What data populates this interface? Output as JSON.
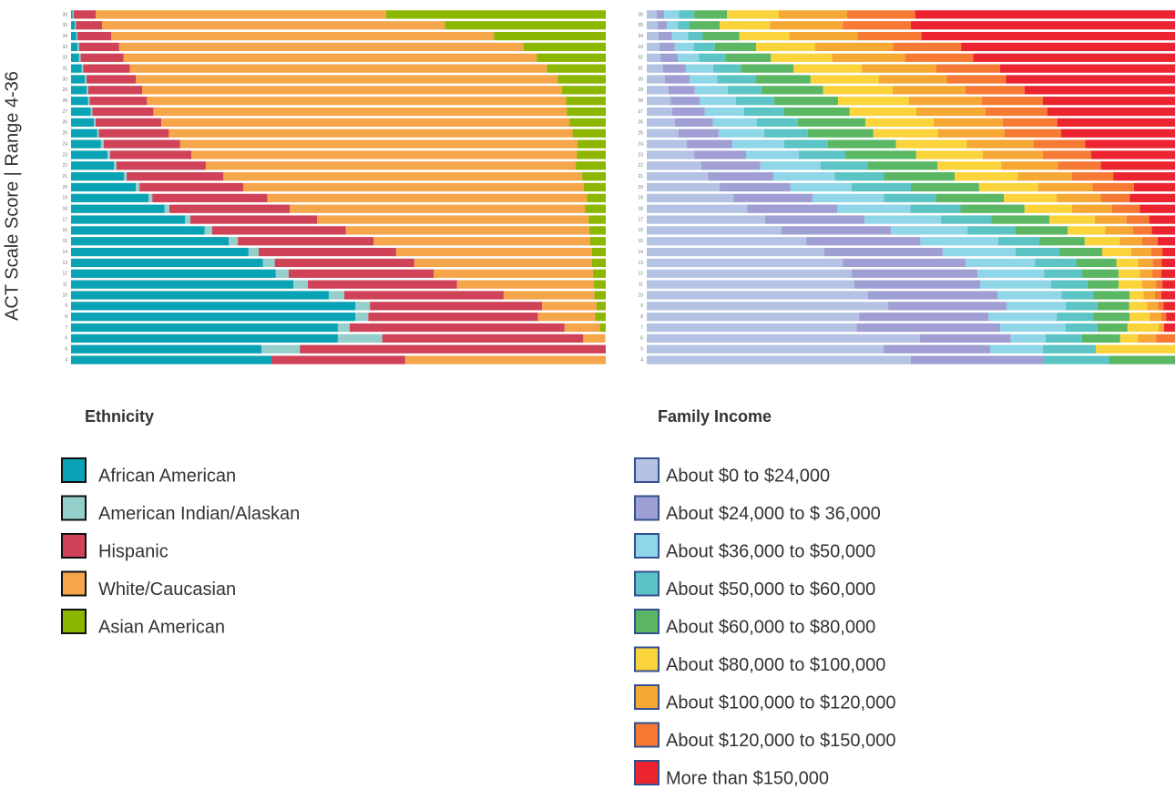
{
  "chart_data": [
    {
      "type": "bar",
      "orientation": "horizontal",
      "stacked": true,
      "title": "Ethnicity",
      "y_label": "ACT Scale Score | Range 4-36",
      "categories": [
        "36",
        "35",
        "34",
        "33",
        "32",
        "31",
        "30",
        "29",
        "28",
        "27",
        "26",
        "25",
        "24",
        "23",
        "22",
        "21",
        "20",
        "19",
        "18",
        "17",
        "16",
        "15",
        "14",
        "13",
        "12",
        "11",
        "10",
        "9",
        "8",
        "7",
        "6",
        "5",
        "4"
      ],
      "xlim": [
        0,
        100
      ],
      "legend_border": "#111",
      "series": [
        {
          "name": "African American",
          "color": "#0aa3b5",
          "values": [
            0.3,
            0.7,
            1.0,
            1.2,
            1.5,
            2.0,
            2.6,
            2.9,
            3.2,
            3.7,
            4.3,
            4.9,
            5.6,
            6.8,
            8.0,
            9.9,
            12.1,
            14.5,
            17.5,
            21.3,
            25.0,
            29.5,
            33.2,
            35.9,
            38.3,
            41.6,
            48.2,
            53.2,
            53.2,
            49.9,
            49.9,
            35.6,
            37.5
          ]
        },
        {
          "name": "American Indian/Alaskan",
          "color": "#95cfcc",
          "values": [
            0.2,
            0.2,
            0.2,
            0.3,
            0.3,
            0.3,
            0.3,
            0.3,
            0.3,
            0.3,
            0.3,
            0.3,
            0.5,
            0.5,
            0.5,
            0.5,
            0.7,
            0.7,
            0.9,
            1.0,
            1.4,
            1.7,
            1.9,
            2.2,
            2.4,
            2.7,
            2.9,
            2.7,
            2.4,
            2.2,
            8.3,
            7.2,
            0
          ]
        },
        {
          "name": "Hispanic",
          "color": "#cf4258",
          "values": [
            4.1,
            4.9,
            6.3,
            7.5,
            8.0,
            8.7,
            9.2,
            10.1,
            10.7,
            11.4,
            12.3,
            13.1,
            14.3,
            15.2,
            16.7,
            18.1,
            19.4,
            21.5,
            22.5,
            23.7,
            25.0,
            25.4,
            25.7,
            26.1,
            27.1,
            27.9,
            29.8,
            32.2,
            31.7,
            40.2,
            37.6,
            57.2,
            25.0
          ]
        },
        {
          "name": "White/Caucasian",
          "color": "#f5a54a",
          "values": [
            54.3,
            64.1,
            71.6,
            75.6,
            77.3,
            78.0,
            78.9,
            78.5,
            78.4,
            77.3,
            76.3,
            75.5,
            74.3,
            72.1,
            69.2,
            67.1,
            63.7,
            59.8,
            55.2,
            50.8,
            45.5,
            40.5,
            36.6,
            33.2,
            29.8,
            25.6,
            17.0,
            10.2,
            10.7,
            6.6,
            4.1,
            0,
            37.5
          ]
        },
        {
          "name": "Asian American",
          "color": "#8db600",
          "values": [
            41.1,
            30.1,
            20.9,
            15.4,
            12.9,
            11.0,
            9.0,
            8.2,
            7.4,
            7.3,
            6.8,
            6.2,
            5.3,
            5.4,
            5.6,
            4.4,
            4.1,
            3.5,
            3.9,
            3.2,
            3.1,
            2.9,
            2.6,
            2.6,
            2.4,
            2.2,
            2.1,
            1.7,
            2.0,
            1.1,
            0,
            0,
            0
          ]
        }
      ]
    },
    {
      "type": "bar",
      "orientation": "horizontal",
      "stacked": true,
      "title": "Family Income",
      "categories": [
        "36",
        "35",
        "34",
        "33",
        "32",
        "31",
        "30",
        "29",
        "28",
        "27",
        "26",
        "25",
        "24",
        "23",
        "22",
        "21",
        "20",
        "19",
        "18",
        "17",
        "16",
        "15",
        "14",
        "13",
        "12",
        "11",
        "10",
        "9",
        "8",
        "7",
        "6",
        "5",
        "4"
      ],
      "xlim": [
        0,
        100
      ],
      "legend_border": "#34508f",
      "series": [
        {
          "name": "About $0 to $24,000",
          "color": "#b4c3e3",
          "values": [
            1.9,
            2.1,
            2.2,
            2.4,
            2.6,
            3.1,
            3.4,
            4.1,
            4.5,
            4.8,
            5.3,
            6.0,
            7.6,
            9.0,
            10.3,
            11.6,
            13.8,
            16.4,
            19.0,
            22.4,
            25.5,
            30.2,
            33.6,
            37.1,
            38.8,
            39.3,
            41.9,
            45.7,
            40.2,
            39.7,
            51.7,
            44.8,
            50
          ]
        },
        {
          "name": "About $24,000 to $ 36,000",
          "color": "#a09fd4",
          "values": [
            1.4,
            1.7,
            2.6,
            2.9,
            3.3,
            4.3,
            4.7,
            5.0,
            5.5,
            6.2,
            7.2,
            7.6,
            8.6,
            9.8,
            11.2,
            12.4,
            13.4,
            15.0,
            17.1,
            18.8,
            20.7,
            21.6,
            22.4,
            23.3,
            23.8,
            23.8,
            24.5,
            22.4,
            24.5,
            27.2,
            17.2,
            20.2,
            25
          ]
        },
        {
          "name": "About $36,000 to $50,000",
          "color": "#8ed6e8",
          "values": [
            2.8,
            2.1,
            3.0,
            3.6,
            4.0,
            5.2,
            5.2,
            6.2,
            6.9,
            7.4,
            8.3,
            8.6,
            9.8,
            10.0,
            11.4,
            11.6,
            11.6,
            13.5,
            13.8,
            14.5,
            14.5,
            14.7,
            13.8,
            13.1,
            12.6,
            13.4,
            12.1,
            11.2,
            12.9,
            12.4,
            6.6,
            10.0,
            0
          ]
        },
        {
          "name": "About $50,000 to $60,000",
          "color": "#5cc4c4",
          "values": [
            2.9,
            2.2,
            2.8,
            4.0,
            5.0,
            5.2,
            7.4,
            6.4,
            7.2,
            7.6,
            7.8,
            8.3,
            8.3,
            8.8,
            9.0,
            9.3,
            11.2,
            9.8,
            9.5,
            9.5,
            9.0,
            7.8,
            8.3,
            7.8,
            7.2,
            6.9,
            6.0,
            6.0,
            6.9,
            6.0,
            6.9,
            10.0,
            12.5
          ]
        },
        {
          "name": "About $60,000 to $80,000",
          "color": "#5bb764",
          "values": [
            6.2,
            5.7,
            6.9,
            7.8,
            8.6,
            10.0,
            10.3,
            11.7,
            12.1,
            12.4,
            12.8,
            12.4,
            12.9,
            13.4,
            13.1,
            13.4,
            12.9,
            12.9,
            12.1,
            11.0,
            10.0,
            8.6,
            8.1,
            7.6,
            6.9,
            5.9,
            6.9,
            6.0,
            6.9,
            5.7,
            7.2,
            0,
            12.5
          ]
        },
        {
          "name": "About $80,000 to $100,000",
          "color": "#fbd33a",
          "values": [
            9.8,
            9.5,
            9.5,
            11.2,
            11.6,
            12.9,
            12.9,
            13.1,
            13.4,
            12.6,
            12.9,
            12.2,
            13.4,
            12.6,
            12.1,
            11.9,
            11.2,
            10.0,
            9.0,
            8.6,
            7.1,
            6.6,
            5.5,
            4.1,
            4.0,
            4.5,
            2.6,
            3.4,
            3.8,
            5.9,
            3.4,
            15.0,
            0
          ]
        },
        {
          "name": "About $100,000 to $120,000",
          "color": "#f5a834",
          "values": [
            12.9,
            13.8,
            12.9,
            14.7,
            13.8,
            14.1,
            12.9,
            13.8,
            13.8,
            13.1,
            13.1,
            12.6,
            12.6,
            11.4,
            10.7,
            10.3,
            10.3,
            8.3,
            7.6,
            6.0,
            5.2,
            4.3,
            3.8,
            2.8,
            2.4,
            2.6,
            2.2,
            2.1,
            2.2,
            1.0,
            3.4,
            0,
            0
          ]
        },
        {
          "name": "About $120,000 to $150,000",
          "color": "#f67a34",
          "values": [
            12.9,
            12.9,
            12.1,
            12.9,
            12.9,
            12.1,
            11.2,
            11.2,
            11.6,
            11.7,
            10.3,
            10.7,
            9.8,
            9.1,
            8.1,
            7.8,
            7.8,
            5.5,
            5.2,
            4.3,
            3.6,
            2.9,
            2.1,
            1.7,
            1.7,
            1.2,
            1.2,
            1.0,
            0.9,
            0,
            3.6,
            0,
            0
          ]
        },
        {
          "name": "More than $150,000",
          "color": "#ec2430",
          "values": [
            49.2,
            50.0,
            48.0,
            40.5,
            38.2,
            33.1,
            32.0,
            28.5,
            25.0,
            24.2,
            22.3,
            21.6,
            17.0,
            15.9,
            14.1,
            11.7,
            7.8,
            8.6,
            6.7,
            4.9,
            4.4,
            3.3,
            2.4,
            2.5,
            2.6,
            2.4,
            2.6,
            2.2,
            1.7,
            2.1,
            0,
            0,
            0
          ]
        }
      ]
    }
  ]
}
